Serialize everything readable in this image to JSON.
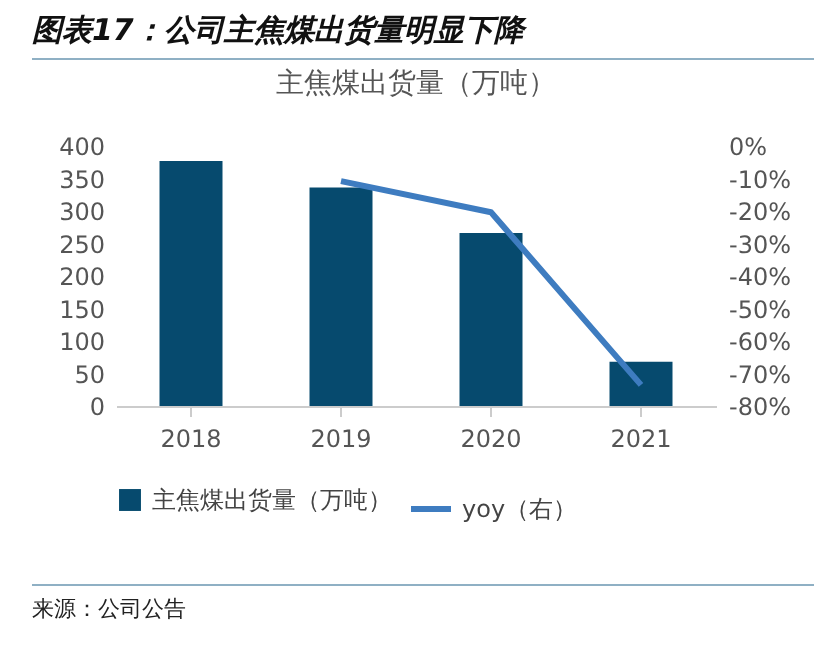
{
  "chart_data": {
    "type": "bar",
    "title": "图表17：公司主焦煤出货量明显下降",
    "subtitle": "主焦煤出货量（万吨）",
    "annotations": [
      "来源：公司公告"
    ],
    "categories": [
      "2018",
      "2019",
      "2020",
      "2021"
    ],
    "series": [
      {
        "name": "主焦煤出货量（万吨）",
        "color": "#064a6e",
        "values": [
          377,
          336,
          266,
          68
        ]
      },
      {
        "name": "yoy（右）",
        "type": "line",
        "axis": "y2",
        "color": "#3e7cc0",
        "values": [
          null,
          -10.8,
          -20.4,
          -73.5
        ]
      }
    ],
    "ylim": [
      0,
      400
    ],
    "yticks": [
      0,
      50,
      100,
      150,
      200,
      250,
      300,
      350,
      400
    ],
    "y2lim": [
      -80,
      0
    ],
    "y2ticks": [
      {
        "value": 0,
        "label": "0%"
      },
      {
        "value": -10,
        "label": "-10%"
      },
      {
        "value": -20,
        "label": "-20%"
      },
      {
        "value": -30,
        "label": "-30%"
      },
      {
        "value": -40,
        "label": "-40%"
      },
      {
        "value": -50,
        "label": "-50%"
      },
      {
        "value": -60,
        "label": "-60%"
      },
      {
        "value": -70,
        "label": "-70%"
      },
      {
        "value": -80,
        "label": "-80%"
      }
    ],
    "grid": false,
    "legend": "bottom"
  }
}
